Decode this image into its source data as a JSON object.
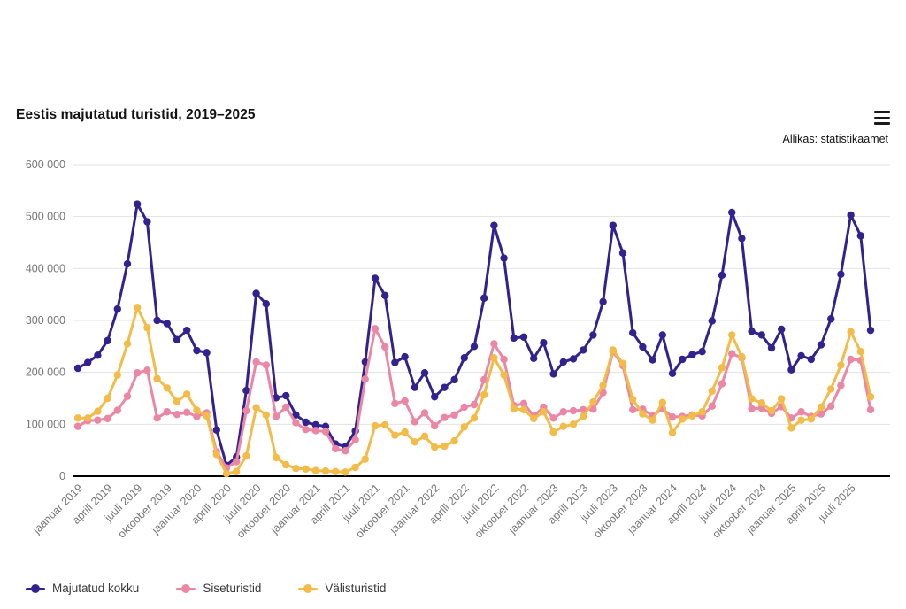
{
  "header": {
    "title": "Eestis majutatud turistid, 2019–2025",
    "source": "Allikas: statistikaamet"
  },
  "legend": {
    "items": [
      {
        "label": "Majutatud kokku",
        "color": "#33218f"
      },
      {
        "label": "Siseturistid",
        "color": "#ec86a5"
      },
      {
        "label": "Välisturistid",
        "color": "#f3bb47"
      }
    ]
  },
  "chart_data": {
    "type": "line",
    "title": "Eestis majutatud turistid, 2019–2025",
    "xlabel": "",
    "ylabel": "",
    "ylim": [
      0,
      600000
    ],
    "grid": true,
    "legend_position": "bottom",
    "x_tick_every": 3,
    "y_ticks": [
      0,
      100000,
      200000,
      300000,
      400000,
      500000,
      600000
    ],
    "y_tick_labels": [
      "0",
      "100 000",
      "200 000",
      "300 000",
      "400 000",
      "500 000",
      "600 000"
    ],
    "x": [
      "jaanuar 2019",
      "veebruar 2019",
      "märts 2019",
      "aprill 2019",
      "mai 2019",
      "juuni 2019",
      "juuli 2019",
      "august 2019",
      "september 2019",
      "oktoober 2019",
      "november 2019",
      "detsember 2019",
      "jaanuar 2020",
      "veebruar 2020",
      "märts 2020",
      "aprill 2020",
      "mai 2020",
      "juuni 2020",
      "juuli 2020",
      "august 2020",
      "september 2020",
      "oktoober 2020",
      "november 2020",
      "detsember 2020",
      "jaanuar 2021",
      "veebruar 2021",
      "märts 2021",
      "aprill 2021",
      "mai 2021",
      "juuni 2021",
      "juuli 2021",
      "august 2021",
      "september 2021",
      "oktoober 2021",
      "november 2021",
      "detsember 2021",
      "jaanuar 2022",
      "veebruar 2022",
      "märts 2022",
      "aprill 2022",
      "mai 2022",
      "juuni 2022",
      "juuli 2022",
      "august 2022",
      "september 2022",
      "oktoober 2022",
      "november 2022",
      "detsember 2022",
      "jaanuar 2023",
      "veebruar 2023",
      "märts 2023",
      "aprill 2023",
      "mai 2023",
      "juuni 2023",
      "juuli 2023",
      "august 2023",
      "september 2023",
      "oktoober 2023",
      "november 2023",
      "detsember 2023",
      "jaanuar 2024",
      "veebruar 2024",
      "märts 2024",
      "aprill 2024",
      "mai 2024",
      "juuni 2024",
      "juuli 2024",
      "august 2024",
      "september 2024",
      "oktoober 2024",
      "november 2024",
      "detsember 2024",
      "jaanuar 2025",
      "veebruar 2025",
      "märts 2025",
      "aprill 2025",
      "mai 2025",
      "juuni 2025",
      "juuli 2025",
      "august 2025",
      "september 2025"
    ],
    "series": [
      {
        "name": "Majutatud kokku",
        "color": "#33218f",
        "values": [
          208000,
          219000,
          233000,
          261000,
          322000,
          409000,
          524000,
          490000,
          300000,
          294000,
          263000,
          281000,
          242000,
          238000,
          89000,
          21000,
          37000,
          165000,
          352000,
          332000,
          151000,
          155000,
          118000,
          104000,
          99000,
          96000,
          62000,
          57000,
          87000,
          220000,
          381000,
          348000,
          219000,
          230000,
          171000,
          199000,
          153000,
          171000,
          186000,
          228000,
          250000,
          343000,
          483000,
          420000,
          266000,
          268000,
          227000,
          257000,
          197000,
          220000,
          226000,
          243000,
          272000,
          336000,
          483000,
          430000,
          276000,
          249000,
          224000,
          272000,
          198000,
          225000,
          234000,
          240000,
          299000,
          387000,
          508000,
          458000,
          279000,
          272000,
          247000,
          283000,
          205000,
          232000,
          225000,
          253000,
          303000,
          389000,
          503000,
          463000,
          281000
        ]
      },
      {
        "name": "Siseturistid",
        "color": "#ec86a5",
        "values": [
          96000,
          107000,
          108000,
          111000,
          127000,
          154000,
          199000,
          204000,
          112000,
          124000,
          119000,
          123000,
          115000,
          122000,
          47000,
          16000,
          28000,
          126000,
          220000,
          214000,
          115000,
          133000,
          103000,
          90000,
          88000,
          86000,
          53000,
          49000,
          70000,
          187000,
          284000,
          249000,
          140000,
          145000,
          105000,
          122000,
          97000,
          113000,
          118000,
          133000,
          138000,
          186000,
          255000,
          225000,
          136000,
          140000,
          116000,
          133000,
          112000,
          124000,
          126000,
          128000,
          129000,
          161000,
          240000,
          213000,
          128000,
          129000,
          116000,
          130000,
          114000,
          115000,
          118000,
          116000,
          135000,
          178000,
          236000,
          228000,
          130000,
          131000,
          121000,
          134000,
          112000,
          124000,
          115000,
          120000,
          135000,
          175000,
          225000,
          223000,
          128000
        ]
      },
      {
        "name": "Välisturistid",
        "color": "#f3bb47",
        "values": [
          112000,
          112000,
          125000,
          150000,
          195000,
          255000,
          325000,
          286000,
          188000,
          170000,
          144000,
          158000,
          127000,
          116000,
          42000,
          5000,
          9000,
          39000,
          132000,
          118000,
          36000,
          22000,
          15000,
          14000,
          11000,
          10000,
          9000,
          8000,
          17000,
          33000,
          97000,
          99000,
          79000,
          85000,
          66000,
          77000,
          56000,
          58000,
          68000,
          95000,
          112000,
          157000,
          228000,
          195000,
          130000,
          128000,
          111000,
          124000,
          85000,
          96000,
          100000,
          115000,
          143000,
          175000,
          243000,
          217000,
          148000,
          120000,
          108000,
          142000,
          84000,
          110000,
          116000,
          124000,
          164000,
          209000,
          272000,
          230000,
          149000,
          141000,
          126000,
          149000,
          93000,
          108000,
          110000,
          133000,
          168000,
          214000,
          278000,
          240000,
          153000
        ]
      }
    ]
  },
  "style": {
    "grid_color": "#e2e2e2",
    "axis_color": "#000000",
    "tick_label_color": "#757575"
  }
}
